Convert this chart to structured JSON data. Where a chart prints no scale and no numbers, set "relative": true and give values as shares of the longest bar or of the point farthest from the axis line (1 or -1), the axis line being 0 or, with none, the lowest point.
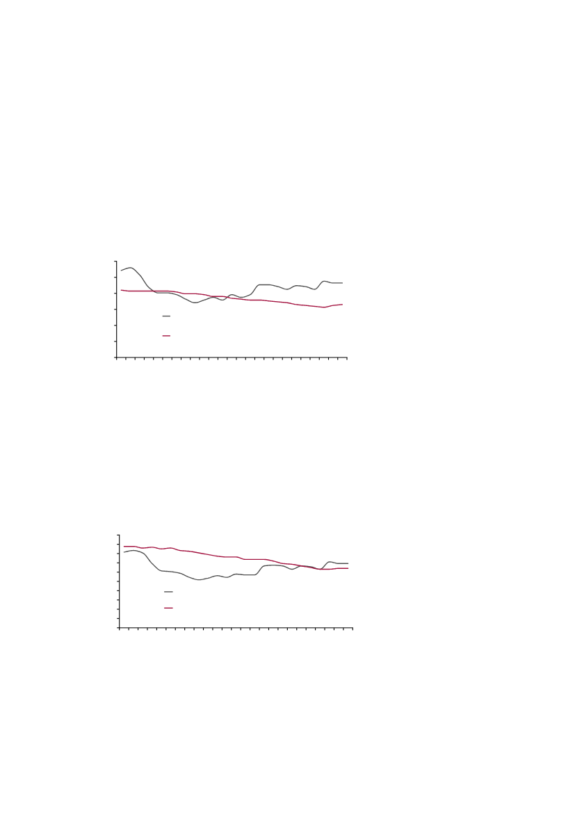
{
  "chart_data": [
    {
      "type": "line",
      "relative": true,
      "line_style": "solid",
      "categories": [
        null,
        null,
        null,
        null,
        null,
        null,
        null,
        null,
        null,
        null,
        null,
        null,
        null,
        null,
        null,
        null,
        null,
        null,
        null,
        null,
        null,
        null,
        null,
        null,
        null
      ],
      "series": [
        {
          "color": "#505050",
          "values": [
            0.97,
            1,
            0.92,
            0.78,
            0.72,
            0.72,
            0.7,
            0.65,
            0.61,
            0.64,
            0.67,
            0.64,
            0.7,
            0.67,
            0.7,
            0.81,
            0.81,
            0.79,
            0.76,
            0.8,
            0.79,
            0.76,
            0.85,
            0.83,
            0.83
          ]
        },
        {
          "color": "#a3123f",
          "values": [
            0.75,
            0.74,
            0.74,
            0.74,
            0.74,
            0.74,
            0.73,
            0.71,
            0.71,
            0.7,
            0.68,
            0.68,
            0.66,
            0.65,
            0.64,
            0.64,
            0.63,
            0.62,
            0.61,
            0.59,
            0.58,
            0.57,
            0.56,
            0.58,
            0.59
          ]
        }
      ]
    },
    {
      "type": "line",
      "relative": true,
      "line_style": "solid",
      "categories": [
        null,
        null,
        null,
        null,
        null,
        null,
        null,
        null,
        null,
        null,
        null,
        null,
        null,
        null,
        null,
        null,
        null,
        null,
        null,
        null,
        null,
        null,
        null,
        null,
        null
      ],
      "series": [
        {
          "color": "#505050",
          "values": [
            0.93,
            0.95,
            0.92,
            0.79,
            0.7,
            0.69,
            0.67,
            0.62,
            0.59,
            0.61,
            0.64,
            0.62,
            0.66,
            0.65,
            0.65,
            0.76,
            0.77,
            0.76,
            0.72,
            0.76,
            0.75,
            0.72,
            0.81,
            0.79,
            0.79
          ]
        },
        {
          "color": "#a3123f",
          "values": [
            1,
            1,
            0.98,
            0.99,
            0.97,
            0.98,
            0.95,
            0.94,
            0.92,
            0.9,
            0.88,
            0.87,
            0.87,
            0.84,
            0.84,
            0.84,
            0.82,
            0.79,
            0.78,
            0.76,
            0.74,
            0.72,
            0.72,
            0.73,
            0.73
          ]
        }
      ]
    }
  ]
}
